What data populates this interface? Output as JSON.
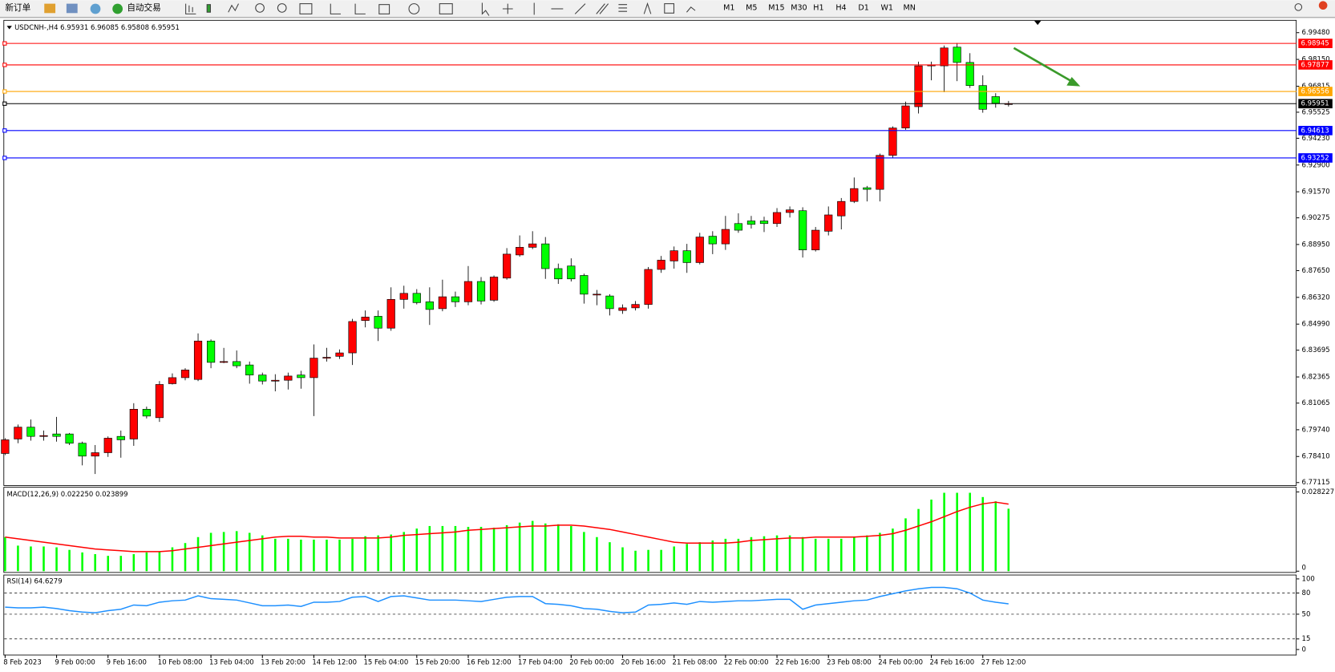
{
  "toolbar": {
    "new_order": "新订单",
    "auto_trading": "自动交易",
    "timeframes": [
      "M1",
      "M5",
      "M15",
      "M30",
      "H1",
      "H4",
      "D1",
      "W1",
      "MN"
    ]
  },
  "chart_data": {
    "type": "candlestick",
    "header": "USDCNH-,H4 6.95931 6.96085 6.95808 6.95951",
    "up_color": "#ff0000",
    "down_color": "#00ff00",
    "categories": [
      "8 Feb 2023",
      null,
      null,
      null,
      "9 Feb 00:00",
      null,
      null,
      null,
      "9 Feb 16:00",
      null,
      null,
      null,
      "10 Feb 08:00",
      null,
      null,
      null,
      "13 Feb 04:00",
      null,
      null,
      null,
      "13 Feb 20:00",
      null,
      null,
      null,
      "14 Feb 12:00",
      null,
      null,
      null,
      "15 Feb 04:00",
      null,
      null,
      null,
      "15 Feb 20:00",
      null,
      null,
      null,
      "16 Feb 12:00",
      null,
      null,
      null,
      "17 Feb 04:00",
      null,
      null,
      null,
      "20 Feb 00:00",
      null,
      null,
      null,
      "20 Feb 16:00",
      null,
      null,
      null,
      "21 Feb 08:00",
      null,
      null,
      null,
      "22 Feb 00:00",
      null,
      null,
      null,
      "22 Feb 16:00",
      null,
      null,
      null,
      "23 Feb 08:00",
      null,
      null,
      null,
      "24 Feb 00:00",
      null,
      null,
      null,
      "24 Feb 16:00",
      null,
      null,
      null,
      "27 Feb 12:00",
      null,
      null
    ],
    "open": [
      6.7856,
      6.7928,
      6.7987,
      6.7945,
      6.7953,
      6.7953,
      6.7907,
      6.7843,
      6.786,
      6.7941,
      6.7928,
      6.8076,
      6.8034,
      6.8203,
      6.8233,
      6.8224,
      6.8415,
      6.8313,
      6.8313,
      6.8296,
      6.8246,
      6.822,
      6.822,
      6.8246,
      6.8233,
      6.8334,
      6.8339,
      6.8356,
      6.8517,
      6.8538,
      6.8479,
      6.8622,
      6.8652,
      6.861,
      6.8576,
      6.8635,
      6.861,
      6.8711,
      6.8618,
      6.8728,
      6.8843,
      6.8881,
      6.8898,
      6.8775,
      6.8788,
      6.8741,
      6.8648,
      6.8639,
      6.8567,
      6.858,
      6.8597,
      6.8771,
      6.8813,
      6.8864,
      6.8805,
      6.8936,
      6.8898,
      6.8999,
      6.9012,
      6.9012,
      6.8999,
      6.9054,
      6.9063,
      6.8868,
      6.8961,
      6.9037,
      6.9109,
      6.9177,
      6.9169,
      6.9338,
      6.9474,
      6.958,
      6.9783,
      6.9783,
      6.9876,
      6.98,
      6.9685,
      6.963,
      6.95931
    ],
    "high": [
      6.7932,
      6.8,
      6.8025,
      6.797,
      6.8038,
      6.7958,
      6.7915,
      6.7898,
      6.7941,
      6.797,
      6.8106,
      6.8089,
      6.8216,
      6.8254,
      6.828,
      6.8453,
      6.8423,
      6.8381,
      6.8368,
      6.8313,
      6.8258,
      6.825,
      6.8258,
      6.8267,
      6.8398,
      6.8381,
      6.8373,
      6.8525,
      6.8567,
      6.8567,
      6.8682,
      6.869,
      6.8673,
      6.8682,
      6.872,
      6.8661,
      6.8788,
      6.8733,
      6.8741,
      6.8877,
      6.894,
      6.8961,
      6.8932,
      6.88,
      6.8826,
      6.875,
      6.8669,
      6.8648,
      6.8597,
      6.8614,
      6.8783,
      6.8838,
      6.8885,
      6.8898,
      6.8953,
      6.8961,
      6.9037,
      6.905,
      6.9037,
      6.9033,
      6.9076,
      6.9084,
      6.908,
      6.8982,
      6.9084,
      6.9126,
      6.9228,
      6.9186,
      6.9347,
      6.9482,
      6.9605,
      6.9804,
      6.9804,
      6.9884,
      6.9897,
      6.9846,
      6.9736,
      6.9647,
      6.96085
    ],
    "low": [
      6.7848,
      6.7907,
      6.792,
      6.792,
      6.7915,
      6.7898,
      6.7797,
      6.7754,
      6.7839,
      6.7835,
      6.7894,
      6.803,
      6.8013,
      6.8199,
      6.822,
      6.8216,
      6.828,
      6.8305,
      6.828,
      6.8203,
      6.8199,
      6.8165,
      6.8174,
      6.8178,
      6.8042,
      6.8313,
      6.8326,
      6.8296,
      6.8483,
      6.8415,
      6.8466,
      6.8576,
      6.8597,
      6.8495,
      6.8563,
      6.8584,
      6.8593,
      6.8597,
      6.861,
      6.872,
      6.8834,
      6.8872,
      6.8724,
      6.8699,
      6.8711,
      6.8601,
      6.8593,
      6.8542,
      6.855,
      6.8567,
      6.8576,
      6.8754,
      6.8775,
      6.8754,
      6.8796,
      6.8847,
      6.8868,
      6.8953,
      6.8974,
      6.8957,
      6.8982,
      6.9029,
      6.883,
      6.886,
      6.894,
      6.897,
      6.9101,
      6.9109,
      6.9109,
      6.9325,
      6.9465,
      6.9546,
      6.9711,
      6.9652,
      6.9707,
      6.9673,
      6.955,
      6.9575,
      6.95808
    ],
    "close": [
      6.7924,
      6.7987,
      6.7941,
      6.7945,
      6.7941,
      6.7907,
      6.7843,
      6.786,
      6.7932,
      6.7924,
      6.8076,
      6.8042,
      6.8199,
      6.8233,
      6.8271,
      6.8415,
      6.8309,
      6.8313,
      6.8292,
      6.8246,
      6.8216,
      6.822,
      6.8241,
      6.8233,
      6.833,
      6.8334,
      6.8356,
      6.8512,
      6.8534,
      6.8479,
      6.8622,
      6.8652,
      6.8606,
      6.8572,
      6.8635,
      6.861,
      6.8711,
      6.8614,
      6.8733,
      6.8847,
      6.8881,
      6.8898,
      6.8775,
      6.8724,
      6.8724,
      6.8648,
      6.8648,
      6.8576,
      6.858,
      6.8597,
      6.8771,
      6.8817,
      6.8864,
      6.8805,
      6.8932,
      6.8898,
      6.897,
      6.8966,
      6.8995,
      6.8999,
      6.9054,
      6.9067,
      6.8868,
      6.8966,
      6.9042,
      6.9109,
      6.9173,
      6.9169,
      6.9338,
      6.9474,
      6.9584,
      6.9783,
      6.9787,
      6.9872,
      6.98,
      6.9685,
      6.9567,
      6.9597,
      6.95951
    ],
    "ylim": [
      6.7703,
      7.0003
    ],
    "yticks": [
      {
        "value": 6.9948,
        "label": "6.99480"
      },
      {
        "value": 6.9815,
        "label": "6.98150"
      },
      6.96815,
      6.95525,
      {
        "value": 6.9423,
        "label": "6.94230"
      },
      {
        "value": 6.929,
        "label": "6.92900"
      },
      {
        "value": 6.9157,
        "label": "6.91570"
      },
      6.90275,
      {
        "value": 6.8895,
        "label": "6.88950"
      },
      {
        "value": 6.8765,
        "label": "6.87650"
      },
      {
        "value": 6.8632,
        "label": "6.86320"
      },
      {
        "value": 6.8499,
        "label": "6.84990"
      },
      6.83695,
      6.82365,
      6.81065,
      {
        "value": 6.7974,
        "label": "6.79740"
      },
      {
        "value": 6.7841,
        "label": "6.78410"
      },
      6.77115
    ],
    "hlines": [
      {
        "value": 6.98945,
        "color": "#ff0000"
      },
      {
        "value": 6.97877,
        "color": "#ff0000"
      },
      {
        "value": 6.96556,
        "color": "#ffa500"
      },
      {
        "value": 6.95951,
        "color": "#000000"
      },
      {
        "value": 6.94613,
        "color": "#0000ff"
      },
      {
        "value": 6.93252,
        "color": "#0000ff"
      }
    ],
    "macd": {
      "title": "MACD(12,26,9) 0.022250 0.023899",
      "hist_color": "#00ff00",
      "signal_color": "#ff0000",
      "ylim": [
        -0.0003,
        0.02944
      ],
      "yticks": [
        0.028227,
        0
      ],
      "hist_values": [
        0.01214,
        0.009105,
        0.008802,
        0.008802,
        0.008498,
        0.007588,
        0.006677,
        0.00607,
        0.005463,
        0.005463,
        0.00607,
        0.006677,
        0.006981,
        0.008498,
        0.010016,
        0.01214,
        0.013658,
        0.013961,
        0.014265,
        0.013658,
        0.012747,
        0.011533,
        0.011533,
        0.01123,
        0.01123,
        0.01123,
        0.01123,
        0.011533,
        0.012444,
        0.012747,
        0.013051,
        0.013961,
        0.015175,
        0.016086,
        0.016086,
        0.016086,
        0.015782,
        0.015782,
        0.015479,
        0.016389,
        0.0173,
        0.017907,
        0.016996,
        0.016693,
        0.016086,
        0.013961,
        0.01214,
        0.010319,
        0.008498,
        0.007284,
        0.007588,
        0.007588,
        0.008802,
        0.009712,
        0.010319,
        0.010926,
        0.011533,
        0.011533,
        0.01214,
        0.012444,
        0.012747,
        0.012747,
        0.01214,
        0.011533,
        0.011533,
        0.011533,
        0.01214,
        0.012747,
        0.013658,
        0.015175,
        0.018817,
        0.022156,
        0.025494,
        0.027922,
        0.027922,
        0.027922,
        0.026405,
        0.024887,
        0.02225
      ],
      "signal_values": [
        0.01214,
        0.011533,
        0.010926,
        0.010319,
        0.009712,
        0.009105,
        0.008498,
        0.007891,
        0.007588,
        0.007284,
        0.006981,
        0.006981,
        0.006981,
        0.007284,
        0.007891,
        0.008498,
        0.009105,
        0.009712,
        0.010319,
        0.010926,
        0.011533,
        0.01214,
        0.012444,
        0.012444,
        0.01214,
        0.01214,
        0.011837,
        0.011837,
        0.011837,
        0.011837,
        0.01214,
        0.012747,
        0.013051,
        0.013354,
        0.013658,
        0.013961,
        0.014568,
        0.014872,
        0.015175,
        0.015479,
        0.015782,
        0.016086,
        0.016086,
        0.016389,
        0.016389,
        0.016086,
        0.015479,
        0.014872,
        0.013961,
        0.013051,
        0.01214,
        0.01123,
        0.010319,
        0.010016,
        0.010016,
        0.010016,
        0.010016,
        0.010319,
        0.010926,
        0.01123,
        0.011533,
        0.011837,
        0.011837,
        0.01214,
        0.01214,
        0.01214,
        0.01214,
        0.012444,
        0.012747,
        0.013354,
        0.014568,
        0.016086,
        0.017603,
        0.019424,
        0.021245,
        0.022763,
        0.023977,
        0.024584,
        0.023899
      ]
    },
    "rsi": {
      "title": "RSI(14) 64.6279",
      "color": "#1e90ff",
      "ylim": [
        -7.3,
        104.9
      ],
      "yticks": [
        100,
        80,
        50,
        15,
        0
      ],
      "values": [
        60,
        59,
        59,
        60,
        58,
        55,
        53,
        52,
        55,
        57,
        63,
        62,
        67,
        69,
        70,
        76,
        72,
        71,
        70,
        66,
        62,
        62,
        63,
        61,
        67,
        67,
        68,
        74,
        75,
        68,
        75,
        76,
        73,
        70,
        70,
        70,
        69,
        68,
        71,
        74,
        75,
        75,
        65,
        64,
        62,
        58,
        57,
        54,
        52,
        53,
        63,
        64,
        66,
        64,
        68,
        67,
        68,
        69,
        69,
        70,
        71,
        71,
        57,
        63,
        65,
        67,
        69,
        70,
        75,
        79,
        83,
        86,
        88,
        88,
        86,
        80,
        70,
        67,
        64.6279
      ]
    }
  }
}
